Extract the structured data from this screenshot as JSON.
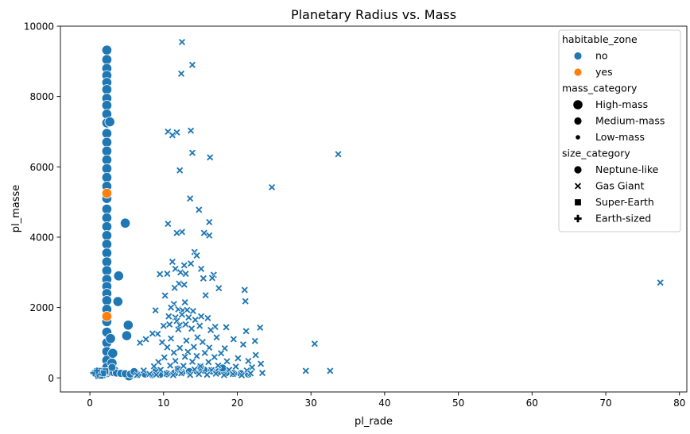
{
  "chart_data": {
    "type": "scatter",
    "title": "Planetary Radius vs. Mass",
    "xlabel": "pl_rade",
    "ylabel": "pl_masse",
    "xlim": [
      -4,
      81
    ],
    "ylim": [
      -400,
      10000
    ],
    "xticks": [
      0,
      10,
      20,
      30,
      40,
      50,
      60,
      70,
      80
    ],
    "yticks": [
      0,
      2000,
      4000,
      6000,
      8000,
      10000
    ],
    "grid": false,
    "legend_placement": "top-right",
    "legend": {
      "groups": [
        {
          "title": "habitable_zone",
          "items": [
            {
              "label": "no",
              "marker": "circle",
              "color": "#1f77b4",
              "size": "medium"
            },
            {
              "label": "yes",
              "marker": "circle",
              "color": "#ff7f0e",
              "size": "medium"
            }
          ]
        },
        {
          "title": "mass_category",
          "items": [
            {
              "label": "High-mass",
              "marker": "circle",
              "color": "#000000",
              "size": "large"
            },
            {
              "label": "Medium-mass",
              "marker": "circle",
              "color": "#000000",
              "size": "medium"
            },
            {
              "label": "Low-mass",
              "marker": "circle",
              "color": "#000000",
              "size": "small"
            }
          ]
        },
        {
          "title": "size_category",
          "items": [
            {
              "label": "Neptune-like",
              "marker": "circle",
              "color": "#000000",
              "size": "medium"
            },
            {
              "label": "Gas Giant",
              "marker": "x",
              "color": "#000000",
              "size": "medium"
            },
            {
              "label": "Super-Earth",
              "marker": "square",
              "color": "#000000",
              "size": "medium"
            },
            {
              "label": "Earth-sized",
              "marker": "plus",
              "color": "#000000",
              "size": "medium"
            }
          ]
        }
      ]
    },
    "colors": {
      "no": "#1f77b4",
      "yes": "#ff7f0e"
    },
    "series": [
      {
        "habitable_zone": "no",
        "size_category": "Neptune-like",
        "mass_category": "High-mass",
        "marker": "circle",
        "points": [
          [
            2.3,
            9320
          ],
          [
            2.3,
            9050
          ],
          [
            2.3,
            8800
          ],
          [
            2.3,
            8600
          ],
          [
            2.3,
            8400
          ],
          [
            2.3,
            8200
          ],
          [
            2.3,
            7950
          ],
          [
            2.3,
            7750
          ],
          [
            2.3,
            7500
          ],
          [
            2.3,
            7250
          ],
          [
            2.3,
            6950
          ],
          [
            2.3,
            6700
          ],
          [
            2.3,
            6450
          ],
          [
            2.3,
            6200
          ],
          [
            2.3,
            5950
          ],
          [
            2.3,
            5700
          ],
          [
            2.3,
            5450
          ],
          [
            2.3,
            5100
          ],
          [
            2.3,
            4800
          ],
          [
            2.3,
            4550
          ],
          [
            2.3,
            4300
          ],
          [
            2.3,
            4050
          ],
          [
            2.3,
            3800
          ],
          [
            2.3,
            3550
          ],
          [
            2.3,
            3300
          ],
          [
            2.3,
            3050
          ],
          [
            2.3,
            2800
          ],
          [
            2.3,
            2600
          ],
          [
            2.3,
            2400
          ],
          [
            2.3,
            2200
          ],
          [
            2.3,
            1950
          ],
          [
            2.3,
            1600
          ],
          [
            2.3,
            1300
          ],
          [
            2.3,
            1000
          ],
          [
            2.3,
            750
          ],
          [
            2.3,
            500
          ],
          [
            2.3,
            300
          ],
          [
            2.3,
            150
          ],
          [
            4.8,
            4400
          ],
          [
            3.9,
            2900
          ],
          [
            3.8,
            2170
          ],
          [
            5.2,
            1500
          ],
          [
            5.0,
            1200
          ],
          [
            2.8,
            1120
          ],
          [
            3.1,
            700
          ],
          [
            3.0,
            420
          ],
          [
            2.7,
            7280
          ],
          [
            3.3,
            200
          ],
          [
            5.3,
            60
          ]
        ]
      },
      {
        "habitable_zone": "no",
        "size_category": "Neptune-like",
        "mass_category": "Medium-mass",
        "marker": "circle",
        "points": [
          [
            2.5,
            180
          ],
          [
            2.8,
            160
          ],
          [
            3.2,
            150
          ],
          [
            3.6,
            140
          ],
          [
            4.2,
            130
          ],
          [
            4.8,
            120
          ],
          [
            5.5,
            110
          ],
          [
            6.5,
            100
          ],
          [
            7.5,
            110
          ],
          [
            8.5,
            90
          ],
          [
            9.5,
            100
          ],
          [
            10.5,
            120
          ],
          [
            11.5,
            140
          ],
          [
            12.5,
            160
          ],
          [
            13.5,
            180
          ],
          [
            14.5,
            200
          ],
          [
            15.5,
            220
          ],
          [
            16.5,
            200
          ],
          [
            17.5,
            180
          ],
          [
            18.5,
            150
          ],
          [
            19.5,
            130
          ],
          [
            20.5,
            120
          ],
          [
            21.5,
            110
          ],
          [
            3.0,
            300
          ],
          [
            6.0,
            180
          ],
          [
            9.0,
            200
          ],
          [
            12.0,
            250
          ],
          [
            15.0,
            300
          ],
          [
            18.0,
            280
          ]
        ]
      },
      {
        "habitable_zone": "yes",
        "size_category": "Neptune-like",
        "mass_category": "High-mass",
        "marker": "circle",
        "points": [
          [
            2.3,
            5250
          ],
          [
            2.3,
            1750
          ]
        ]
      },
      {
        "habitable_zone": "no",
        "size_category": "Gas Giant",
        "mass_category": "High-mass",
        "marker": "x",
        "points": [
          [
            12.5,
            9550
          ],
          [
            13.9,
            8900
          ],
          [
            12.4,
            8650
          ],
          [
            13.7,
            7030
          ],
          [
            10.6,
            7000
          ],
          [
            11.8,
            6980
          ],
          [
            11.2,
            6900
          ],
          [
            16.3,
            6270
          ],
          [
            13.9,
            6400
          ],
          [
            12.2,
            5900
          ],
          [
            24.7,
            5420
          ],
          [
            33.7,
            6360
          ],
          [
            13.6,
            5100
          ],
          [
            14.8,
            4780
          ],
          [
            10.6,
            4380
          ],
          [
            16.2,
            4430
          ],
          [
            12.5,
            4150
          ],
          [
            11.8,
            4120
          ],
          [
            15.5,
            4120
          ],
          [
            16.2,
            4050
          ],
          [
            14.2,
            3580
          ],
          [
            14.5,
            3480
          ],
          [
            11.2,
            3300
          ],
          [
            12.8,
            3200
          ],
          [
            13.7,
            3250
          ],
          [
            11.6,
            3100
          ],
          [
            12.3,
            3000
          ],
          [
            15.1,
            3100
          ],
          [
            13.0,
            2960
          ],
          [
            10.5,
            2960
          ],
          [
            9.5,
            2950
          ],
          [
            16.8,
            2930
          ],
          [
            16.6,
            2840
          ],
          [
            15.4,
            2830
          ],
          [
            12.1,
            2680
          ],
          [
            11.5,
            2560
          ],
          [
            12.8,
            2650
          ],
          [
            17.5,
            2550
          ],
          [
            21.0,
            2500
          ],
          [
            21.1,
            2180
          ],
          [
            15.7,
            2350
          ],
          [
            10.2,
            2340
          ],
          [
            12.9,
            2150
          ],
          [
            11.4,
            2100
          ],
          [
            11.0,
            2000
          ],
          [
            12.0,
            1950
          ],
          [
            12.6,
            1920
          ],
          [
            13.2,
            1930
          ],
          [
            14.0,
            1900
          ],
          [
            8.9,
            1920
          ],
          [
            10.7,
            1750
          ],
          [
            11.6,
            1720
          ],
          [
            12.5,
            1800
          ],
          [
            13.4,
            1720
          ],
          [
            15.1,
            1750
          ],
          [
            16.0,
            1700
          ],
          [
            14.3,
            1650
          ],
          [
            11.8,
            1620
          ],
          [
            10.0,
            1480
          ],
          [
            10.8,
            1520
          ],
          [
            12.2,
            1500
          ],
          [
            13.0,
            1520
          ],
          [
            14.9,
            1480
          ],
          [
            17.0,
            1450
          ],
          [
            18.5,
            1440
          ],
          [
            9.2,
            1250
          ],
          [
            8.5,
            1260
          ],
          [
            12.0,
            1380
          ],
          [
            13.8,
            1400
          ],
          [
            16.4,
            1360
          ],
          [
            21.2,
            1330
          ],
          [
            23.1,
            1430
          ],
          [
            7.6,
            1100
          ],
          [
            6.8,
            1000
          ],
          [
            9.8,
            1010
          ],
          [
            11.0,
            1120
          ],
          [
            14.6,
            1150
          ],
          [
            17.2,
            1150
          ],
          [
            19.5,
            1100
          ],
          [
            20.8,
            950
          ],
          [
            30.5,
            970
          ],
          [
            22.4,
            1050
          ],
          [
            13.1,
            1060
          ],
          [
            15.3,
            1020
          ],
          [
            10.5,
            870
          ],
          [
            12.2,
            850
          ],
          [
            14.1,
            880
          ],
          [
            16.2,
            860
          ],
          [
            18.3,
            840
          ],
          [
            11.4,
            720
          ],
          [
            13.3,
            740
          ],
          [
            15.6,
            710
          ],
          [
            17.8,
            700
          ],
          [
            22.5,
            650
          ],
          [
            10.1,
            580
          ],
          [
            12.9,
            600
          ],
          [
            14.5,
            620
          ],
          [
            16.9,
            590
          ],
          [
            20.1,
            560
          ],
          [
            9.3,
            450
          ],
          [
            11.6,
            480
          ],
          [
            13.9,
            460
          ],
          [
            16.1,
            450
          ],
          [
            18.6,
            470
          ],
          [
            21.5,
            480
          ],
          [
            23.2,
            400
          ],
          [
            8.7,
            330
          ],
          [
            10.9,
            350
          ],
          [
            12.7,
            340
          ],
          [
            15.0,
            330
          ],
          [
            17.4,
            350
          ],
          [
            19.8,
            320
          ],
          [
            22.0,
            300
          ],
          [
            7.3,
            210
          ],
          [
            9.6,
            230
          ],
          [
            11.9,
            250
          ],
          [
            14.2,
            240
          ],
          [
            16.5,
            220
          ],
          [
            18.9,
            230
          ],
          [
            21.3,
            210
          ],
          [
            23.4,
            140
          ],
          [
            29.3,
            200
          ],
          [
            32.6,
            200
          ],
          [
            77.4,
            2710
          ],
          [
            8.1,
            110
          ],
          [
            10.4,
            120
          ],
          [
            12.4,
            130
          ],
          [
            14.8,
            110
          ],
          [
            17.1,
            120
          ],
          [
            19.4,
            110
          ],
          [
            21.8,
            130
          ],
          [
            6.4,
            80
          ],
          [
            9.0,
            90
          ],
          [
            11.3,
            80
          ],
          [
            13.6,
            85
          ],
          [
            15.9,
            90
          ],
          [
            18.2,
            80
          ],
          [
            20.6,
            75
          ]
        ]
      },
      {
        "habitable_zone": "no",
        "size_category": "Super-Earth",
        "mass_category": "Low-mass",
        "marker": "square",
        "points": [
          [
            1.2,
            150
          ],
          [
            1.4,
            120
          ],
          [
            1.6,
            180
          ],
          [
            1.8,
            100
          ],
          [
            2.0,
            140
          ],
          [
            1.3,
            90
          ],
          [
            1.5,
            200
          ],
          [
            1.7,
            80
          ],
          [
            1.9,
            160
          ],
          [
            1.1,
            110
          ],
          [
            2.1,
            190
          ],
          [
            1.45,
            60
          ],
          [
            1.75,
            130
          ]
        ]
      },
      {
        "habitable_zone": "no",
        "size_category": "Earth-sized",
        "mass_category": "Low-mass",
        "marker": "plus",
        "points": [
          [
            0.6,
            120
          ],
          [
            0.8,
            90
          ],
          [
            1.0,
            150
          ],
          [
            0.9,
            60
          ],
          [
            0.7,
            180
          ],
          [
            1.05,
            100
          ],
          [
            0.5,
            140
          ],
          [
            0.95,
            200
          ]
        ]
      }
    ]
  }
}
